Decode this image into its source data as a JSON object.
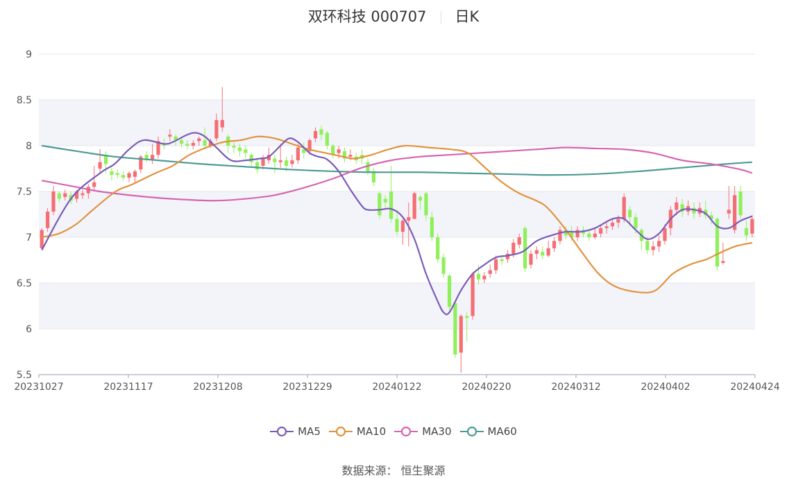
{
  "header": {
    "title": "双环科技 000707",
    "period": "日K"
  },
  "source": "数据来源： 恒生聚源",
  "colors": {
    "up": "#f46e73",
    "down": "#8ff05a",
    "ma5": "#7a5bb7",
    "ma10": "#e2913c",
    "ma30": "#d664b1",
    "ma60": "#4c9a95",
    "band": "#f3f4fa",
    "grid": "#e4e6ef"
  },
  "chart_data": {
    "type": "candlestick",
    "ylim": [
      5.5,
      9
    ],
    "yticks": [
      "5.5",
      "6",
      "6.5",
      "7",
      "7.5",
      "8",
      "8.5",
      "9"
    ],
    "xticks": [
      "20231027",
      "20231117",
      "20231208",
      "20231229",
      "20240122",
      "20240220",
      "20240312",
      "20240402",
      "20240424"
    ],
    "legend": [
      {
        "name": "MA5",
        "color": "#7a5bb7"
      },
      {
        "name": "MA10",
        "color": "#e2913c"
      },
      {
        "name": "MA30",
        "color": "#d664b1"
      },
      {
        "name": "MA60",
        "color": "#4c9a95"
      }
    ],
    "candles": [
      [
        6.88,
        7.08,
        7.1,
        6.86
      ],
      [
        7.1,
        7.28,
        7.32,
        7.06
      ],
      [
        7.28,
        7.5,
        7.56,
        7.24
      ],
      [
        7.48,
        7.42,
        7.5,
        7.38
      ],
      [
        7.44,
        7.48,
        7.52,
        7.4
      ],
      [
        7.46,
        7.4,
        7.5,
        7.36
      ],
      [
        7.42,
        7.5,
        7.52,
        7.38
      ],
      [
        7.46,
        7.48,
        7.52,
        7.42
      ],
      [
        7.48,
        7.55,
        7.58,
        7.42
      ],
      [
        7.55,
        7.6,
        7.78,
        7.5
      ],
      [
        7.75,
        7.82,
        7.96,
        7.7
      ],
      [
        7.9,
        7.8,
        7.94,
        7.7
      ],
      [
        7.72,
        7.68,
        7.76,
        7.62
      ],
      [
        7.7,
        7.68,
        7.74,
        7.64
      ],
      [
        7.68,
        7.65,
        7.72,
        7.62
      ],
      [
        7.65,
        7.7,
        7.72,
        7.6
      ],
      [
        7.66,
        7.72,
        7.74,
        7.6
      ],
      [
        7.74,
        7.88,
        7.9,
        7.7
      ],
      [
        7.9,
        7.85,
        7.94,
        7.82
      ],
      [
        7.85,
        7.9,
        8.02,
        7.8
      ],
      [
        7.9,
        8.05,
        8.1,
        7.86
      ],
      [
        8.02,
        8.0,
        8.08,
        7.96
      ],
      [
        8.1,
        8.12,
        8.18,
        8.05
      ],
      [
        8.1,
        8.06,
        8.12,
        8.0
      ],
      [
        8.06,
        8.02,
        8.1,
        7.98
      ],
      [
        8.02,
        8.0,
        8.06,
        7.96
      ],
      [
        8.0,
        8.03,
        8.06,
        7.96
      ],
      [
        8.05,
        8.08,
        8.1,
        8.0
      ],
      [
        8.06,
        8.0,
        8.2,
        7.96
      ],
      [
        8.0,
        8.05,
        8.08,
        7.98
      ],
      [
        8.08,
        8.28,
        8.35,
        8.05
      ],
      [
        8.2,
        8.28,
        8.64,
        8.15
      ],
      [
        8.1,
        8.0,
        8.12,
        7.92
      ],
      [
        8.0,
        7.98,
        8.04,
        7.92
      ],
      [
        7.98,
        7.94,
        8.02,
        7.88
      ],
      [
        7.96,
        7.92,
        8.0,
        7.86
      ],
      [
        7.9,
        7.82,
        7.92,
        7.78
      ],
      [
        7.82,
        7.74,
        7.86,
        7.7
      ],
      [
        7.78,
        7.86,
        7.9,
        7.74
      ],
      [
        7.84,
        7.9,
        7.98,
        7.8
      ],
      [
        7.86,
        7.82,
        7.9,
        7.7
      ],
      [
        7.82,
        7.84,
        8.02,
        7.76
      ],
      [
        7.84,
        7.78,
        7.88,
        7.72
      ],
      [
        7.8,
        7.84,
        7.9,
        7.76
      ],
      [
        7.84,
        7.98,
        8.02,
        7.8
      ],
      [
        7.96,
        7.92,
        8.04,
        7.86
      ],
      [
        7.94,
        8.06,
        8.08,
        7.9
      ],
      [
        8.08,
        8.16,
        8.2,
        8.04
      ],
      [
        8.18,
        8.12,
        8.22,
        8.06
      ],
      [
        8.14,
        8.0,
        8.16,
        7.96
      ],
      [
        8.0,
        7.9,
        8.02,
        7.86
      ],
      [
        7.92,
        7.96,
        8.0,
        7.86
      ],
      [
        7.94,
        7.86,
        7.98,
        7.82
      ],
      [
        7.88,
        7.9,
        7.96,
        7.84
      ],
      [
        7.88,
        7.84,
        7.92,
        7.8
      ],
      [
        7.9,
        7.86,
        7.96,
        7.8
      ],
      [
        7.82,
        7.72,
        7.86,
        7.68
      ],
      [
        7.72,
        7.6,
        7.76,
        7.56
      ],
      [
        7.48,
        7.24,
        7.5,
        7.2
      ],
      [
        7.42,
        7.38,
        7.46,
        7.32
      ],
      [
        7.5,
        7.2,
        7.78,
        7.16
      ],
      [
        7.2,
        7.06,
        7.3,
        7.02
      ],
      [
        7.06,
        7.18,
        7.2,
        6.92
      ],
      [
        7.18,
        7.22,
        7.38,
        6.9
      ],
      [
        7.2,
        7.48,
        7.5,
        7.2
      ],
      [
        7.44,
        7.4,
        7.46,
        7.3
      ],
      [
        7.48,
        7.24,
        7.5,
        7.18
      ],
      [
        7.22,
        7.0,
        7.28,
        6.96
      ],
      [
        7.0,
        6.76,
        7.04,
        6.72
      ],
      [
        6.78,
        6.6,
        6.82,
        6.56
      ],
      [
        6.58,
        6.24,
        6.6,
        6.2
      ],
      [
        6.28,
        5.72,
        6.3,
        5.68
      ],
      [
        5.74,
        6.14,
        6.16,
        5.52
      ],
      [
        6.14,
        6.12,
        6.18,
        5.86
      ],
      [
        6.14,
        6.6,
        6.62,
        6.1
      ],
      [
        6.6,
        6.54,
        6.7,
        6.48
      ],
      [
        6.54,
        6.58,
        6.62,
        6.5
      ],
      [
        6.6,
        6.64,
        6.7,
        6.56
      ],
      [
        6.64,
        6.76,
        6.8,
        6.6
      ],
      [
        6.76,
        6.74,
        6.8,
        6.7
      ],
      [
        6.76,
        6.82,
        6.86,
        6.72
      ],
      [
        6.82,
        6.94,
        6.98,
        6.78
      ],
      [
        6.92,
        7.0,
        7.04,
        6.88
      ],
      [
        7.1,
        6.66,
        7.12,
        6.62
      ],
      [
        6.7,
        6.82,
        6.86,
        6.66
      ],
      [
        6.82,
        6.86,
        6.9,
        6.76
      ],
      [
        6.84,
        6.8,
        6.9,
        6.76
      ],
      [
        6.8,
        6.88,
        6.96,
        6.78
      ],
      [
        6.88,
        6.96,
        7.0,
        6.84
      ],
      [
        6.96,
        7.08,
        7.12,
        6.92
      ],
      [
        7.08,
        7.02,
        7.12,
        6.98
      ],
      [
        7.06,
        7.0,
        7.12,
        6.96
      ],
      [
        7.0,
        7.08,
        7.12,
        6.96
      ],
      [
        7.08,
        7.04,
        7.12,
        7.0
      ],
      [
        7.04,
        7.0,
        7.08,
        6.96
      ],
      [
        7.0,
        7.04,
        7.1,
        6.98
      ],
      [
        7.04,
        7.1,
        7.14,
        7.0
      ],
      [
        7.1,
        7.12,
        7.16,
        7.04
      ],
      [
        7.12,
        7.16,
        7.2,
        7.08
      ],
      [
        7.16,
        7.2,
        7.24,
        7.1
      ],
      [
        7.2,
        7.44,
        7.48,
        7.16
      ],
      [
        7.3,
        7.22,
        7.34,
        7.12
      ],
      [
        7.22,
        7.1,
        7.26,
        7.04
      ],
      [
        7.08,
        6.96,
        7.1,
        6.86
      ],
      [
        6.96,
        6.86,
        7.0,
        6.82
      ],
      [
        6.86,
        6.9,
        6.96,
        6.8
      ],
      [
        6.9,
        6.96,
        7.02,
        6.84
      ],
      [
        6.96,
        7.1,
        7.14,
        6.92
      ],
      [
        7.1,
        7.3,
        7.34,
        7.02
      ],
      [
        7.3,
        7.38,
        7.44,
        7.24
      ],
      [
        7.36,
        7.28,
        7.42,
        7.22
      ],
      [
        7.28,
        7.34,
        7.4,
        7.24
      ],
      [
        7.32,
        7.26,
        7.38,
        7.2
      ],
      [
        7.26,
        7.32,
        7.38,
        7.22
      ],
      [
        7.3,
        7.24,
        7.4,
        7.2
      ],
      [
        7.24,
        7.2,
        7.28,
        7.14
      ],
      [
        7.2,
        6.68,
        7.22,
        6.64
      ],
      [
        6.72,
        6.74,
        6.94,
        6.7
      ],
      [
        7.26,
        7.3,
        7.56,
        7.2
      ],
      [
        7.08,
        7.46,
        7.56,
        7.04
      ],
      [
        7.5,
        7.24,
        7.56,
        7.2
      ],
      [
        7.1,
        7.02,
        7.18,
        6.96
      ],
      [
        7.04,
        7.2,
        7.24,
        7.0
      ]
    ],
    "ma5": [
      [
        0,
        6.86
      ],
      [
        10,
        7.42
      ],
      [
        20,
        7.7
      ],
      [
        25,
        7.8
      ],
      [
        30,
        7.96
      ],
      [
        35,
        8.06
      ],
      [
        42,
        8.02
      ],
      [
        45,
        8.04
      ],
      [
        50,
        8.12
      ],
      [
        53,
        8.14
      ],
      [
        56,
        8.1
      ],
      [
        60,
        7.98
      ],
      [
        65,
        7.84
      ],
      [
        70,
        7.84
      ],
      [
        75,
        7.86
      ],
      [
        78,
        7.88
      ],
      [
        82,
        8.0
      ],
      [
        85,
        8.08
      ],
      [
        88,
        8.04
      ],
      [
        92,
        7.92
      ],
      [
        95,
        7.88
      ],
      [
        98,
        7.85
      ],
      [
        102,
        7.72
      ],
      [
        106,
        7.52
      ],
      [
        110,
        7.34
      ],
      [
        112,
        7.3
      ],
      [
        116,
        7.3
      ],
      [
        120,
        7.31
      ],
      [
        124,
        7.22
      ],
      [
        128,
        6.98
      ],
      [
        132,
        6.6
      ],
      [
        136,
        6.3
      ],
      [
        138,
        6.18
      ],
      [
        140,
        6.18
      ],
      [
        144,
        6.42
      ],
      [
        148,
        6.6
      ],
      [
        152,
        6.7
      ],
      [
        156,
        6.78
      ],
      [
        160,
        6.8
      ],
      [
        165,
        6.84
      ],
      [
        170,
        6.96
      ],
      [
        175,
        7.02
      ],
      [
        180,
        7.06
      ],
      [
        185,
        7.06
      ],
      [
        190,
        7.1
      ],
      [
        196,
        7.2
      ],
      [
        200,
        7.2
      ],
      [
        204,
        7.08
      ],
      [
        208,
        6.98
      ],
      [
        212,
        7.04
      ],
      [
        216,
        7.2
      ],
      [
        220,
        7.3
      ],
      [
        224,
        7.3
      ],
      [
        228,
        7.26
      ],
      [
        232,
        7.12
      ],
      [
        236,
        7.1
      ],
      [
        240,
        7.18
      ],
      [
        244,
        7.23
      ]
    ],
    "ma10": [
      [
        0,
        7.0
      ],
      [
        6,
        7.04
      ],
      [
        12,
        7.14
      ],
      [
        18,
        7.3
      ],
      [
        26,
        7.5
      ],
      [
        32,
        7.58
      ],
      [
        40,
        7.7
      ],
      [
        46,
        7.78
      ],
      [
        52,
        7.9
      ],
      [
        58,
        7.98
      ],
      [
        64,
        8.04
      ],
      [
        70,
        8.06
      ],
      [
        76,
        8.1
      ],
      [
        82,
        8.08
      ],
      [
        88,
        8.02
      ],
      [
        94,
        7.96
      ],
      [
        100,
        7.92
      ],
      [
        106,
        7.88
      ],
      [
        110,
        7.86
      ],
      [
        116,
        7.9
      ],
      [
        122,
        7.96
      ],
      [
        128,
        8.0
      ],
      [
        136,
        7.98
      ],
      [
        144,
        7.96
      ],
      [
        150,
        7.92
      ],
      [
        156,
        7.76
      ],
      [
        162,
        7.6
      ],
      [
        168,
        7.48
      ],
      [
        174,
        7.4
      ],
      [
        178,
        7.32
      ],
      [
        184,
        7.1
      ],
      [
        190,
        6.84
      ],
      [
        196,
        6.6
      ],
      [
        202,
        6.46
      ],
      [
        210,
        6.4
      ],
      [
        216,
        6.42
      ],
      [
        222,
        6.6
      ],
      [
        228,
        6.7
      ],
      [
        234,
        6.76
      ],
      [
        238,
        6.82
      ],
      [
        244,
        6.9
      ],
      [
        250,
        6.94
      ]
    ],
    "ma30": [
      [
        0,
        7.62
      ],
      [
        10,
        7.56
      ],
      [
        20,
        7.5
      ],
      [
        30,
        7.46
      ],
      [
        40,
        7.43
      ],
      [
        50,
        7.41
      ],
      [
        60,
        7.4
      ],
      [
        70,
        7.42
      ],
      [
        80,
        7.46
      ],
      [
        90,
        7.54
      ],
      [
        100,
        7.64
      ],
      [
        110,
        7.76
      ],
      [
        120,
        7.84
      ],
      [
        130,
        7.88
      ],
      [
        140,
        7.9
      ],
      [
        150,
        7.92
      ],
      [
        160,
        7.94
      ],
      [
        170,
        7.96
      ],
      [
        180,
        7.98
      ],
      [
        190,
        7.97
      ],
      [
        200,
        7.96
      ],
      [
        210,
        7.92
      ],
      [
        220,
        7.84
      ],
      [
        230,
        7.8
      ],
      [
        240,
        7.74
      ],
      [
        244,
        7.7
      ]
    ],
    "ma60": [
      [
        0,
        8.0
      ],
      [
        12,
        7.94
      ],
      [
        25,
        7.88
      ],
      [
        40,
        7.84
      ],
      [
        55,
        7.8
      ],
      [
        70,
        7.77
      ],
      [
        85,
        7.74
      ],
      [
        100,
        7.72
      ],
      [
        115,
        7.71
      ],
      [
        130,
        7.71
      ],
      [
        145,
        7.7
      ],
      [
        160,
        7.69
      ],
      [
        175,
        7.68
      ],
      [
        190,
        7.69
      ],
      [
        205,
        7.72
      ],
      [
        220,
        7.76
      ],
      [
        235,
        7.8
      ],
      [
        244,
        7.82
      ]
    ]
  }
}
